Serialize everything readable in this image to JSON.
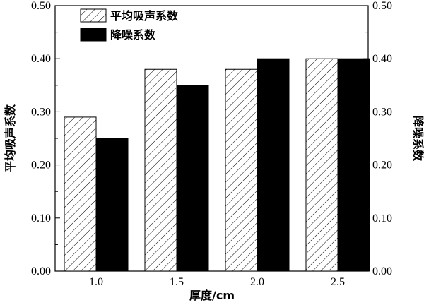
{
  "chart_data": {
    "type": "bar",
    "categories": [
      "1.0",
      "1.5",
      "2.0",
      "2.5"
    ],
    "series": [
      {
        "name": "平均吸声系数",
        "values": [
          0.29,
          0.38,
          0.38,
          0.4
        ],
        "pattern": "hatch",
        "color": "#000000"
      },
      {
        "name": "降噪系数",
        "values": [
          0.25,
          0.35,
          0.4,
          0.4
        ],
        "pattern": "solid",
        "color": "#000000"
      }
    ],
    "xlabel": "厚度/cm",
    "ylabel_left": "平均吸声系数",
    "ylabel_right": "降噪系数",
    "ylim": [
      0.0,
      0.5
    ],
    "yticks": [
      "0.00",
      "0.10",
      "0.20",
      "0.30",
      "0.40",
      "0.50"
    ],
    "legend_position": "top-left",
    "grid": false
  }
}
